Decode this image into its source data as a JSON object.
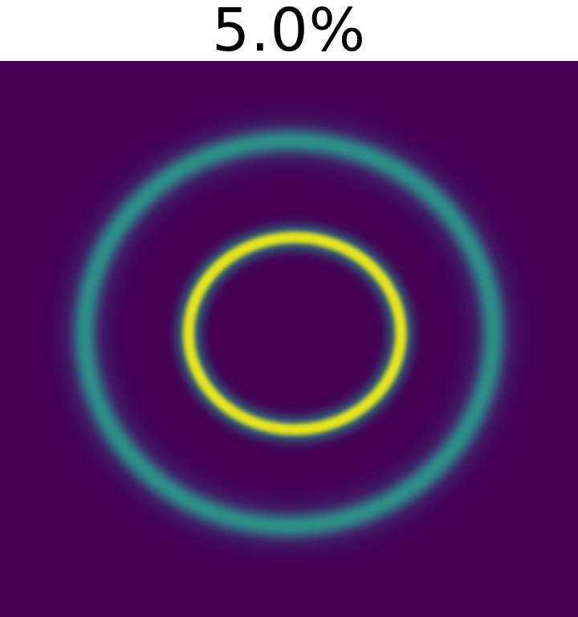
{
  "chart_data": {
    "type": "heatmap",
    "title": "5.0%",
    "colormap": "viridis",
    "colors": {
      "background": "#440154",
      "outer_ring": "#2a9a8a",
      "inner_ring": "#e8e51a"
    },
    "grid": false,
    "legend": "none",
    "rings": [
      {
        "name": "inner",
        "center": [
          0.51,
          0.49
        ],
        "radius": 0.18,
        "intensity": 1.0,
        "sharpness": "narrow"
      },
      {
        "name": "outer",
        "center": [
          0.5,
          0.49
        ],
        "radius": 0.35,
        "intensity": 0.45,
        "sharpness": "broad"
      }
    ]
  }
}
